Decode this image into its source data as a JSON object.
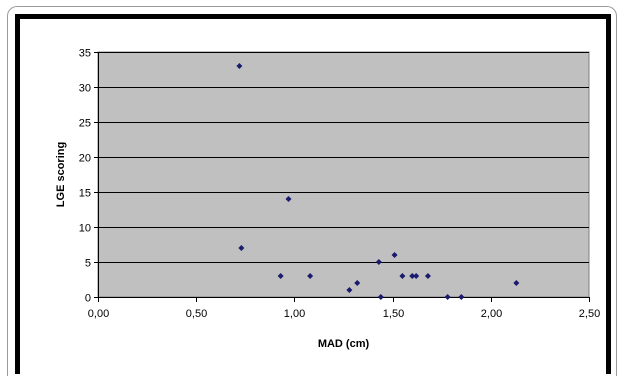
{
  "chart_data": {
    "type": "scatter",
    "title": "",
    "xlabel": "MAD (cm)",
    "ylabel": "LGE scoring",
    "xlim": [
      0,
      2.5
    ],
    "ylim": [
      0,
      35
    ],
    "x_ticks": [
      0,
      0.5,
      1.0,
      1.5,
      2.0,
      2.5
    ],
    "x_tick_labels": [
      "0,00",
      "0,50",
      "1,00",
      "1,50",
      "2,00",
      "2,50"
    ],
    "y_ticks": [
      0,
      5,
      10,
      15,
      20,
      25,
      30,
      35
    ],
    "y_tick_labels": [
      "0",
      "5",
      "10",
      "15",
      "20",
      "25",
      "30",
      "35"
    ],
    "grid": "horizontal",
    "legend": "none",
    "colors": {
      "plot_background": "#c0c0c0",
      "marker": "#1a1a6e",
      "gridline": "#000000",
      "frame": "#000000"
    },
    "points": [
      {
        "x": 0.72,
        "y": 33
      },
      {
        "x": 0.73,
        "y": 7
      },
      {
        "x": 0.93,
        "y": 3
      },
      {
        "x": 0.97,
        "y": 14
      },
      {
        "x": 1.08,
        "y": 3
      },
      {
        "x": 1.28,
        "y": 1
      },
      {
        "x": 1.32,
        "y": 2
      },
      {
        "x": 1.43,
        "y": 5
      },
      {
        "x": 1.44,
        "y": 0
      },
      {
        "x": 1.51,
        "y": 6
      },
      {
        "x": 1.55,
        "y": 3
      },
      {
        "x": 1.6,
        "y": 3
      },
      {
        "x": 1.62,
        "y": 3
      },
      {
        "x": 1.68,
        "y": 3
      },
      {
        "x": 1.78,
        "y": 0
      },
      {
        "x": 1.85,
        "y": 0
      },
      {
        "x": 2.13,
        "y": 2
      }
    ]
  }
}
